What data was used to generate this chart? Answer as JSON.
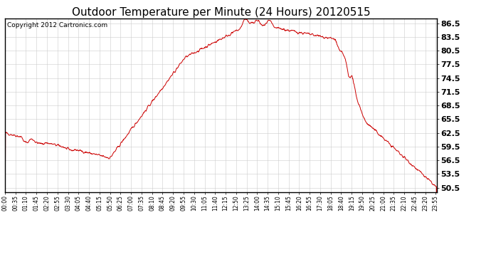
{
  "title": "Outdoor Temperature per Minute (24 Hours) 20120515",
  "copyright_text": "Copyright 2012 Cartronics.com",
  "line_color": "#cc0000",
  "background_color": "#ffffff",
  "grid_color": "#cccccc",
  "yticks": [
    50.5,
    53.5,
    56.5,
    59.5,
    62.5,
    65.5,
    68.5,
    71.5,
    74.5,
    77.5,
    80.5,
    83.5,
    86.5
  ],
  "ylim": [
    49.5,
    87.5
  ],
  "xtick_labels": [
    "00:00",
    "00:35",
    "01:10",
    "01:45",
    "02:20",
    "02:55",
    "03:30",
    "04:05",
    "04:40",
    "05:15",
    "05:50",
    "06:25",
    "07:00",
    "07:35",
    "08:10",
    "08:45",
    "09:20",
    "09:55",
    "10:30",
    "11:05",
    "11:40",
    "12:15",
    "12:50",
    "13:25",
    "14:00",
    "14:35",
    "15:10",
    "15:45",
    "16:20",
    "16:55",
    "17:30",
    "18:05",
    "18:40",
    "19:15",
    "19:50",
    "20:25",
    "21:00",
    "21:35",
    "22:10",
    "22:45",
    "23:20",
    "23:55"
  ],
  "title_fontsize": 11,
  "tick_fontsize": 5.5,
  "ytick_fontsize": 8,
  "copyright_fontsize": 6.5
}
